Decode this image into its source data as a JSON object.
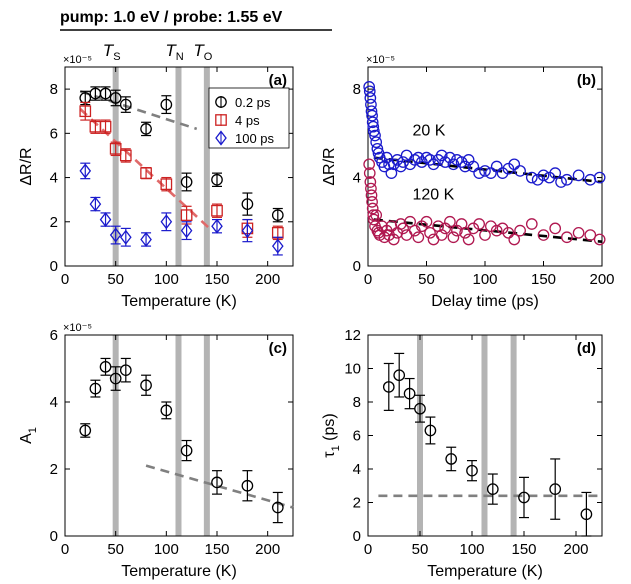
{
  "header": {
    "text": "pump: 1.0 eV / probe: 1.55 eV"
  },
  "temperature_markers": [
    {
      "label": "T",
      "sub": "S",
      "value": 50
    },
    {
      "label": "T",
      "sub": "N",
      "value": 112
    },
    {
      "label": "T",
      "sub": "O",
      "value": 140
    }
  ],
  "colors": {
    "black": "#000000",
    "red": "#cc2222",
    "blue": "#1a1acc",
    "magenta": "#b01850",
    "grid_bar": "#b4b4b4",
    "fit_gray": "#808080",
    "fit_red": "#e06a6a"
  },
  "chart_data": [
    {
      "id": "a",
      "panel_label": "(a)",
      "type": "scatter",
      "xlabel": "Temperature (K)",
      "ylabel": "ΔR/R",
      "scale_note": "×10⁻⁵",
      "xlim": [
        0,
        225
      ],
      "ylim": [
        0,
        9
      ],
      "xticks": [
        0,
        50,
        100,
        150,
        200
      ],
      "yticks": [
        0,
        2,
        4,
        6,
        8
      ],
      "legend_position": "top-right",
      "series": [
        {
          "name": "0.2 ps",
          "marker": "circle",
          "color": "#000000",
          "points": [
            [
              20,
              7.6,
              0.3
            ],
            [
              30,
              7.8,
              0.3
            ],
            [
              40,
              7.8,
              0.3
            ],
            [
              50,
              7.6,
              0.35
            ],
            [
              60,
              7.3,
              0.35
            ],
            [
              80,
              6.2,
              0.3
            ],
            [
              100,
              7.3,
              0.4
            ],
            [
              120,
              3.8,
              0.4
            ],
            [
              150,
              3.9,
              0.3
            ],
            [
              180,
              2.8,
              0.5
            ],
            [
              210,
              2.3,
              0.3
            ]
          ]
        },
        {
          "name": "4 ps",
          "marker": "square",
          "color": "#cc2222",
          "points": [
            [
              20,
              7.0,
              0.4
            ],
            [
              30,
              6.3,
              0.3
            ],
            [
              40,
              6.3,
              0.3
            ],
            [
              50,
              5.3,
              0.3
            ],
            [
              60,
              5.0,
              0.3
            ],
            [
              80,
              4.2,
              0.25
            ],
            [
              100,
              3.7,
              0.3
            ],
            [
              120,
              2.3,
              0.4
            ],
            [
              150,
              2.5,
              0.3
            ],
            [
              180,
              1.7,
              0.4
            ],
            [
              210,
              1.5,
              0.3
            ]
          ]
        },
        {
          "name": "100 ps",
          "marker": "diamond",
          "color": "#1a1acc",
          "points": [
            [
              20,
              4.3,
              0.35
            ],
            [
              30,
              2.8,
              0.3
            ],
            [
              40,
              2.1,
              0.3
            ],
            [
              50,
              1.4,
              0.4
            ],
            [
              60,
              1.3,
              0.4
            ],
            [
              80,
              1.2,
              0.3
            ],
            [
              100,
              2.0,
              0.4
            ],
            [
              120,
              1.6,
              0.4
            ],
            [
              150,
              1.8,
              0.3
            ],
            [
              180,
              1.6,
              0.5
            ],
            [
              210,
              0.9,
              0.4
            ]
          ]
        }
      ],
      "fits": [
        {
          "color": "#808080",
          "x": [
            15,
            130
          ],
          "y": [
            7.9,
            6.2
          ]
        },
        {
          "color": "#e06a6a",
          "x": [
            15,
            145
          ],
          "y": [
            7.1,
            1.6
          ]
        }
      ]
    },
    {
      "id": "b",
      "panel_label": "(b)",
      "type": "scatter",
      "xlabel": "Delay time (ps)",
      "ylabel": "ΔR/R",
      "scale_note": "×10⁻⁵",
      "xlim": [
        0,
        200
      ],
      "ylim": [
        0,
        9
      ],
      "xticks": [
        0,
        50,
        100,
        150,
        200
      ],
      "yticks": [
        0,
        4,
        8
      ],
      "series": [
        {
          "name": "20 K",
          "color": "#1a1acc",
          "points": [
            [
              1,
              8.1
            ],
            [
              1.5,
              7.9
            ],
            [
              2,
              7.6
            ],
            [
              2.5,
              7.3
            ],
            [
              3,
              7.0
            ],
            [
              3.5,
              6.8
            ],
            [
              4,
              6.5
            ],
            [
              4.5,
              6.3
            ],
            [
              5,
              6.1
            ],
            [
              6,
              5.9
            ],
            [
              7,
              5.6
            ],
            [
              8,
              5.3
            ],
            [
              9,
              5.1
            ],
            [
              10,
              4.9
            ],
            [
              12,
              4.7
            ],
            [
              14,
              4.5
            ],
            [
              16,
              4.9
            ],
            [
              18,
              4.6
            ],
            [
              20,
              4.2
            ],
            [
              22,
              4.6
            ],
            [
              25,
              4.8
            ],
            [
              28,
              4.5
            ],
            [
              30,
              4.7
            ],
            [
              33,
              5.0
            ],
            [
              36,
              4.6
            ],
            [
              40,
              4.8
            ],
            [
              43,
              4.9
            ],
            [
              46,
              4.7
            ],
            [
              50,
              4.9
            ],
            [
              53,
              4.8
            ],
            [
              56,
              4.6
            ],
            [
              60,
              4.8
            ],
            [
              63,
              5.0
            ],
            [
              66,
              4.7
            ],
            [
              70,
              4.9
            ],
            [
              73,
              4.6
            ],
            [
              76,
              4.8
            ],
            [
              80,
              4.7
            ],
            [
              83,
              4.5
            ],
            [
              86,
              4.8
            ],
            [
              90,
              4.5
            ],
            [
              95,
              4.2
            ],
            [
              100,
              4.3
            ],
            [
              105,
              4.2
            ],
            [
              110,
              4.5
            ],
            [
              115,
              4.2
            ],
            [
              120,
              4.4
            ],
            [
              125,
              4.6
            ],
            [
              130,
              4.3
            ],
            [
              140,
              4.0
            ],
            [
              145,
              3.9
            ],
            [
              150,
              4.1
            ],
            [
              155,
              4.0
            ],
            [
              160,
              4.2
            ],
            [
              165,
              3.8
            ],
            [
              170,
              3.9
            ],
            [
              180,
              4.1
            ],
            [
              190,
              3.9
            ],
            [
              198,
              4.0
            ]
          ]
        },
        {
          "name": "120 K",
          "color": "#b01850",
          "points": [
            [
              1,
              4.6
            ],
            [
              1.5,
              4.2
            ],
            [
              2,
              3.8
            ],
            [
              2.5,
              3.5
            ],
            [
              3,
              3.2
            ],
            [
              3.5,
              2.9
            ],
            [
              4,
              2.6
            ],
            [
              4.5,
              2.3
            ],
            [
              5,
              2.1
            ],
            [
              6,
              1.8
            ],
            [
              7,
              2.3
            ],
            [
              8,
              1.6
            ],
            [
              9,
              1.5
            ],
            [
              10,
              1.4
            ],
            [
              12,
              1.8
            ],
            [
              14,
              1.3
            ],
            [
              16,
              1.6
            ],
            [
              18,
              1.4
            ],
            [
              20,
              1.8
            ],
            [
              22,
              1.2
            ],
            [
              25,
              1.5
            ],
            [
              28,
              1.9
            ],
            [
              30,
              1.7
            ],
            [
              33,
              1.4
            ],
            [
              36,
              2.0
            ],
            [
              40,
              1.6
            ],
            [
              43,
              1.3
            ],
            [
              46,
              1.8
            ],
            [
              50,
              2.0
            ],
            [
              53,
              1.5
            ],
            [
              56,
              1.2
            ],
            [
              60,
              1.8
            ],
            [
              63,
              1.4
            ],
            [
              66,
              1.7
            ],
            [
              70,
              2.0
            ],
            [
              73,
              1.3
            ],
            [
              76,
              1.6
            ],
            [
              80,
              1.9
            ],
            [
              83,
              1.5
            ],
            [
              86,
              1.2
            ],
            [
              90,
              1.7
            ],
            [
              95,
              1.9
            ],
            [
              100,
              1.4
            ],
            [
              105,
              1.8
            ],
            [
              110,
              1.6
            ],
            [
              115,
              1.7
            ],
            [
              120,
              1.5
            ],
            [
              125,
              1.2
            ],
            [
              130,
              1.6
            ],
            [
              140,
              1.9
            ],
            [
              150,
              1.4
            ],
            [
              160,
              1.7
            ],
            [
              170,
              1.3
            ],
            [
              180,
              1.5
            ],
            [
              190,
              1.4
            ],
            [
              198,
              1.2
            ]
          ]
        }
      ],
      "fits": [
        {
          "color": "#000000",
          "x": [
            5,
            200
          ],
          "y": [
            4.9,
            3.8
          ]
        },
        {
          "color": "#000000",
          "x": [
            5,
            200
          ],
          "y": [
            2.1,
            1.1
          ]
        }
      ]
    },
    {
      "id": "c",
      "panel_label": "(c)",
      "type": "scatter",
      "xlabel": "Temperature (K)",
      "ylabel": "A",
      "ylabel_sub": "1",
      "scale_note": "×10⁻⁵",
      "xlim": [
        0,
        225
      ],
      "ylim": [
        0,
        6
      ],
      "xticks": [
        0,
        50,
        100,
        150,
        200
      ],
      "yticks": [
        0,
        2,
        4,
        6
      ],
      "series": [
        {
          "color": "#000000",
          "points": [
            [
              20,
              3.15,
              0.2
            ],
            [
              30,
              4.4,
              0.25
            ],
            [
              40,
              5.05,
              0.25
            ],
            [
              50,
              4.7,
              0.35
            ],
            [
              60,
              4.95,
              0.35
            ],
            [
              80,
              4.5,
              0.3
            ],
            [
              100,
              3.75,
              0.25
            ],
            [
              120,
              2.55,
              0.3
            ],
            [
              150,
              1.6,
              0.35
            ],
            [
              180,
              1.5,
              0.45
            ],
            [
              210,
              0.85,
              0.45
            ]
          ]
        }
      ],
      "fits": [
        {
          "color": "#808080",
          "x": [
            80,
            225
          ],
          "y": [
            2.1,
            0.85
          ]
        }
      ]
    },
    {
      "id": "d",
      "panel_label": "(d)",
      "type": "scatter",
      "xlabel": "Temperature (K)",
      "ylabel": "τ",
      "ylabel_sub": "1",
      "ylabel_unit": " (ps)",
      "xlim": [
        0,
        225
      ],
      "ylim": [
        0,
        12
      ],
      "xticks": [
        0,
        50,
        100,
        150,
        200
      ],
      "yticks": [
        0,
        2,
        4,
        6,
        8,
        10,
        12
      ],
      "series": [
        {
          "color": "#000000",
          "points": [
            [
              20,
              8.9,
              1.4
            ],
            [
              30,
              9.6,
              1.3
            ],
            [
              40,
              8.5,
              0.9
            ],
            [
              50,
              7.6,
              0.8
            ],
            [
              60,
              6.3,
              0.8
            ],
            [
              80,
              4.6,
              0.7
            ],
            [
              100,
              3.9,
              0.6
            ],
            [
              120,
              2.8,
              0.9
            ],
            [
              150,
              2.3,
              1.2
            ],
            [
              180,
              2.8,
              1.8
            ],
            [
              210,
              1.3,
              1.3
            ]
          ]
        }
      ],
      "fits": [
        {
          "color": "#808080",
          "x": [
            10,
            225
          ],
          "y": [
            2.4,
            2.4
          ]
        }
      ]
    }
  ]
}
